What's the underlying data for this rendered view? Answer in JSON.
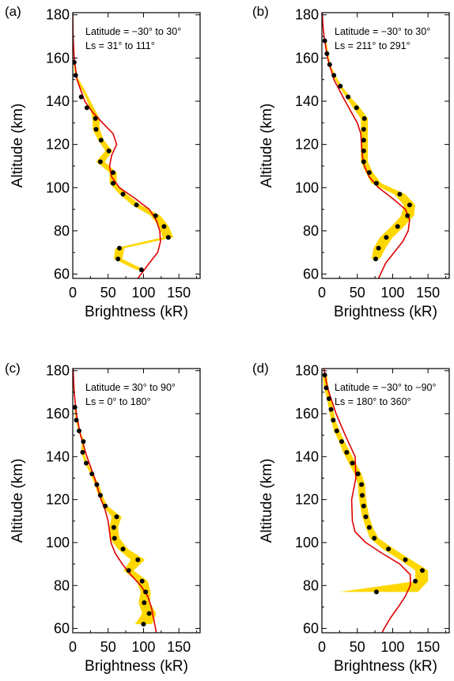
{
  "chart_data": [
    {
      "type": "line",
      "panel_label": "(a)",
      "annotations": [
        "Latitude = −30° to 30°",
        "Ls = 31° to 111°"
      ],
      "xlabel": "Brightness (kR)",
      "ylabel": "Altitude (km)",
      "xlim": [
        0,
        180
      ],
      "ylim": [
        58,
        181
      ],
      "xticks": [
        "0",
        "50",
        "100",
        "150"
      ],
      "yticks": [
        "60",
        "80",
        "100",
        "120",
        "140",
        "160",
        "180"
      ],
      "series": [
        {
          "kind": "uncertainty_band",
          "color": "#FFD700",
          "altitude": [
            158,
            152,
            147,
            142,
            137,
            132,
            127,
            122,
            117,
            112,
            107,
            102,
            97,
            92,
            87,
            82,
            77,
            72,
            67,
            62
          ],
          "lower": [
            1,
            3,
            10,
            18,
            24,
            28,
            28,
            36,
            46,
            33,
            52,
            52,
            66,
            84,
            110,
            122,
            127,
            60,
            58,
            90
          ],
          "upper": [
            3,
            5,
            14,
            22,
            30,
            38,
            38,
            44,
            56,
            45,
            62,
            62,
            76,
            96,
            124,
            136,
            142,
            73,
            70,
            101
          ]
        },
        {
          "kind": "measured",
          "color": "#000000",
          "altitude": [
            158,
            152,
            142,
            137,
            132,
            127,
            122,
            117,
            112,
            107,
            102,
            97,
            92,
            87,
            82,
            77,
            72,
            67,
            62
          ],
          "brightness": [
            2,
            4,
            12,
            20,
            32,
            33,
            40,
            51,
            39,
            57,
            57,
            71,
            90,
            117,
            129,
            135,
            66,
            64,
            97
          ]
        },
        {
          "kind": "model",
          "color": "#E00000",
          "altitude": [
            181,
            170,
            160,
            150,
            140,
            135,
            130,
            125,
            120,
            115,
            110,
            105,
            100,
            95,
            90,
            85,
            80,
            75,
            70,
            65,
            58
          ],
          "brightness": [
            0,
            0.5,
            2,
            6,
            17,
            28,
            42,
            57,
            62,
            55,
            52,
            55,
            66,
            88,
            108,
            118,
            123,
            124,
            120,
            108,
            92
          ]
        }
      ]
    },
    {
      "type": "line",
      "panel_label": "(b)",
      "annotations": [
        "Latitude = −30° to 30°",
        "Ls = 211° to 291°"
      ],
      "xlabel": "Brightness (kR)",
      "ylabel": "Altitude (km)",
      "xlim": [
        0,
        180
      ],
      "ylim": [
        58,
        181
      ],
      "xticks": [
        "0",
        "50",
        "100",
        "150"
      ],
      "yticks": [
        "60",
        "80",
        "100",
        "120",
        "140",
        "160",
        "180"
      ],
      "series": [
        {
          "kind": "uncertainty_band",
          "color": "#FFD700",
          "altitude": [
            168,
            162,
            157,
            152,
            147,
            142,
            137,
            132,
            127,
            122,
            117,
            112,
            107,
            102,
            97,
            92,
            87,
            82,
            77,
            72,
            67
          ],
          "lower": [
            3,
            6,
            9,
            15,
            24,
            34,
            44,
            55,
            55,
            55,
            55,
            55,
            62,
            70,
            102,
            116,
            112,
            98,
            82,
            73,
            70
          ],
          "upper": [
            6,
            9,
            12,
            19,
            28,
            40,
            54,
            65,
            65,
            65,
            65,
            65,
            72,
            84,
            118,
            132,
            130,
            116,
            100,
            90,
            82
          ]
        },
        {
          "kind": "measured",
          "color": "#000000",
          "altitude": [
            168,
            162,
            157,
            152,
            147,
            142,
            137,
            132,
            127,
            122,
            117,
            112,
            107,
            102,
            97,
            92,
            87,
            82,
            77,
            72,
            67
          ],
          "brightness": [
            4,
            7,
            11,
            17,
            26,
            37,
            49,
            60,
            59,
            59,
            59,
            59,
            67,
            77,
            110,
            124,
            121,
            107,
            91,
            80,
            76
          ]
        },
        {
          "kind": "model",
          "color": "#E00000",
          "altitude": [
            181,
            175,
            170,
            160,
            150,
            140,
            130,
            125,
            120,
            115,
            110,
            105,
            100,
            95,
            90,
            85,
            80,
            75,
            70,
            65,
            58
          ],
          "brightness": [
            0.5,
            1.5,
            3,
            8,
            17,
            33,
            50,
            55,
            56,
            57,
            60,
            67,
            80,
            100,
            118,
            124,
            122,
            114,
            102,
            90,
            80
          ]
        }
      ]
    },
    {
      "type": "line",
      "panel_label": "(c)",
      "annotations": [
        "Latitude = 30° to 90°",
        "Ls = 0° to 180°"
      ],
      "xlabel": "Brightness (kR)",
      "ylabel": "Altitude (km)",
      "xlim": [
        0,
        180
      ],
      "ylim": [
        58,
        181
      ],
      "xticks": [
        "0",
        "50",
        "100",
        "150"
      ],
      "yticks": [
        "60",
        "80",
        "100",
        "120",
        "140",
        "160",
        "180"
      ],
      "series": [
        {
          "kind": "uncertainty_band",
          "color": "#FFD700",
          "altitude": [
            163,
            157,
            152,
            147,
            142,
            137,
            132,
            127,
            122,
            117,
            112,
            107,
            102,
            97,
            92,
            87,
            82,
            77,
            72,
            67,
            62
          ],
          "lower": [
            2,
            4,
            8,
            13,
            12,
            17,
            25,
            31,
            36,
            43,
            55,
            52,
            52,
            64,
            82,
            72,
            90,
            96,
            93,
            98,
            88
          ],
          "upper": [
            4,
            6,
            10,
            17,
            16,
            21,
            29,
            37,
            42,
            49,
            69,
            64,
            66,
            78,
            102,
            86,
            106,
            110,
            109,
            118,
            112
          ]
        },
        {
          "kind": "measured",
          "color": "#000000",
          "altitude": [
            163,
            157,
            152,
            147,
            142,
            137,
            132,
            127,
            122,
            117,
            112,
            107,
            102,
            97,
            92,
            87,
            82,
            77,
            72,
            67,
            62
          ],
          "brightness": [
            3,
            5,
            9,
            15,
            14,
            19,
            27,
            34,
            39,
            46,
            62,
            58,
            59,
            71,
            92,
            79,
            98,
            103,
            101,
            108,
            100
          ]
        },
        {
          "kind": "model",
          "color": "#E00000",
          "altitude": [
            181,
            170,
            160,
            150,
            140,
            130,
            120,
            115,
            110,
            105,
            100,
            95,
            90,
            85,
            80,
            75,
            70,
            65,
            60,
            58
          ],
          "brightness": [
            0.5,
            2,
            5,
            11,
            20,
            31,
            40,
            46,
            50,
            52,
            54,
            60,
            70,
            82,
            96,
            106,
            111,
            114,
            117,
            118
          ]
        }
      ]
    },
    {
      "type": "line",
      "panel_label": "(d)",
      "annotations": [
        "Latitude = −30° to −90°",
        "Ls = 180° to 360°"
      ],
      "xlabel": "Brightness (kR)",
      "ylabel": "Altitude (km)",
      "xlim": [
        0,
        180
      ],
      "ylim": [
        58,
        181
      ],
      "xticks": [
        "0",
        "50",
        "100",
        "150"
      ],
      "yticks": [
        "60",
        "80",
        "100",
        "120",
        "140",
        "160",
        "180"
      ],
      "series": [
        {
          "kind": "uncertainty_band",
          "color": "#FFD700",
          "altitude": [
            178,
            172,
            167,
            162,
            157,
            152,
            147,
            142,
            137,
            132,
            127,
            122,
            117,
            112,
            107,
            102,
            97,
            92,
            87,
            82,
            77
          ],
          "lower": [
            1,
            3,
            7,
            10,
            13,
            17,
            24,
            30,
            38,
            46,
            51,
            52,
            54,
            57,
            62,
            68,
            86,
            110,
            132,
            132,
            25
          ],
          "upper": [
            7,
            9,
            13,
            16,
            19,
            25,
            32,
            40,
            48,
            56,
            61,
            62,
            64,
            67,
            72,
            80,
            102,
            126,
            150,
            150,
            136
          ]
        },
        {
          "kind": "measured",
          "color": "#000000",
          "altitude": [
            178,
            172,
            167,
            162,
            157,
            152,
            147,
            142,
            137,
            132,
            127,
            122,
            117,
            112,
            107,
            102,
            97,
            92,
            87,
            82,
            77
          ],
          "brightness": [
            4,
            6,
            10,
            13,
            16,
            21,
            28,
            35,
            43,
            51,
            56,
            57,
            59,
            62,
            67,
            74,
            94,
            118,
            142,
            132,
            77
          ]
        },
        {
          "kind": "model",
          "color": "#E00000",
          "altitude": [
            181,
            175,
            170,
            160,
            150,
            140,
            130,
            120,
            110,
            105,
            100,
            95,
            90,
            85,
            80,
            75,
            70,
            65,
            60,
            58
          ],
          "brightness": [
            3,
            6,
            10,
            20,
            33,
            47,
            48,
            42,
            43,
            47,
            62,
            85,
            110,
            125,
            125,
            118,
            108,
            97,
            88,
            85
          ]
        }
      ]
    }
  ]
}
